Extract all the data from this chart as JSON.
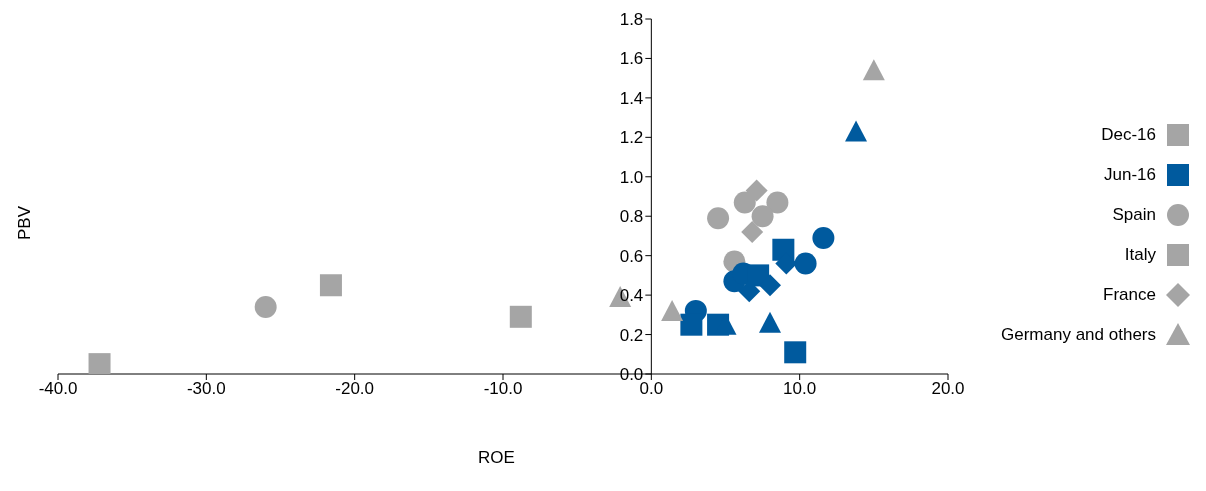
{
  "chart_data": {
    "type": "scatter",
    "xlabel": "ROE",
    "ylabel": "PBV",
    "xlim": [
      -40,
      20
    ],
    "ylim": [
      0,
      1.8
    ],
    "xticks": [
      {
        "value": -40,
        "label": "-40.0"
      },
      {
        "value": -30,
        "label": "-30.0"
      },
      {
        "value": -20,
        "label": "-20.0"
      },
      {
        "value": -10,
        "label": "-10.0"
      },
      {
        "value": 0,
        "label": "0.0"
      },
      {
        "value": 10,
        "label": "10.0"
      },
      {
        "value": 20,
        "label": "20.0"
      }
    ],
    "yticks": [
      {
        "value": 0,
        "label": "0.0"
      },
      {
        "value": 0.2,
        "label": "0.2"
      },
      {
        "value": 0.4,
        "label": "0.4"
      },
      {
        "value": 0.6,
        "label": "0.6"
      },
      {
        "value": 0.8,
        "label": "0.8"
      },
      {
        "value": 1,
        "label": "1.0"
      },
      {
        "value": 1.2,
        "label": "1.2"
      },
      {
        "value": 1.4,
        "label": "1.4"
      },
      {
        "value": 1.6,
        "label": "1.6"
      },
      {
        "value": 1.8,
        "label": "1.8"
      }
    ],
    "legend": "right",
    "series": [
      {
        "name": "Dec-16",
        "color": "#a5a5a5",
        "marker": "square"
      },
      {
        "name": "Jun-16",
        "color": "#005a9e",
        "marker": "square"
      },
      {
        "name": "Spain",
        "color": "#a5a5a5",
        "marker": "circle",
        "x": [
          -26.0,
          4.5,
          6.3,
          8.5,
          7.5,
          5.6,
          3.0,
          5.6,
          6.2,
          10.4,
          11.6
        ],
        "values": [
          0.34,
          0.79,
          0.87,
          0.87,
          0.8,
          0.57,
          0.32,
          0.47,
          0.51,
          0.56,
          0.69
        ],
        "colors": [
          "#a5a5a5",
          "#a5a5a5",
          "#a5a5a5",
          "#a5a5a5",
          "#a5a5a5",
          "#a5a5a5",
          "#005a9e",
          "#005a9e",
          "#005a9e",
          "#005a9e",
          "#005a9e"
        ]
      },
      {
        "name": "Italy",
        "color": "#a5a5a5",
        "marker": "square",
        "x": [
          -37.2,
          -21.6,
          -8.8,
          2.7,
          4.5,
          7.2,
          8.9,
          9.7
        ],
        "values": [
          0.05,
          0.45,
          0.29,
          0.25,
          0.25,
          0.5,
          0.63,
          0.11
        ],
        "colors": [
          "#a5a5a5",
          "#a5a5a5",
          "#a5a5a5",
          "#005a9e",
          "#005a9e",
          "#005a9e",
          "#005a9e",
          "#005a9e"
        ]
      },
      {
        "name": "France",
        "color": "#a5a5a5",
        "marker": "diamond",
        "x": [
          7.1,
          6.8,
          6.6,
          8.0,
          9.1
        ],
        "values": [
          0.93,
          0.72,
          0.42,
          0.45,
          0.56
        ],
        "colors": [
          "#a5a5a5",
          "#a5a5a5",
          "#005a9e",
          "#005a9e",
          "#005a9e"
        ]
      },
      {
        "name": "Germany and others",
        "color": "#a5a5a5",
        "marker": "triangle",
        "x": [
          -2.1,
          1.4,
          15.0,
          5.0,
          8.0,
          13.8
        ],
        "values": [
          0.39,
          0.32,
          1.54,
          0.25,
          0.26,
          1.23
        ],
        "colors": [
          "#a5a5a5",
          "#a5a5a5",
          "#a5a5a5",
          "#005a9e",
          "#005a9e",
          "#005a9e"
        ]
      }
    ]
  }
}
